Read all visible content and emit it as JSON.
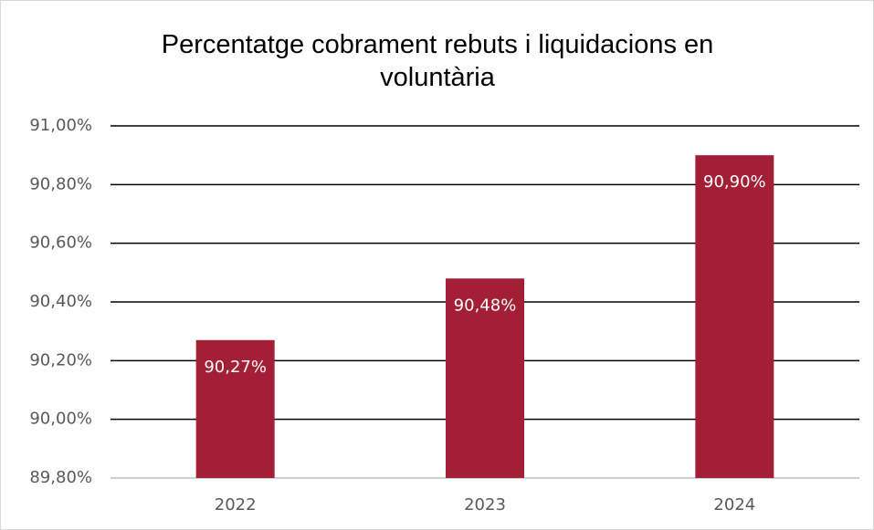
{
  "chart_data": {
    "type": "bar",
    "title": "Percentatge cobrament rebuts i liquidacions en voluntària",
    "categories": [
      "2022",
      "2023",
      "2024"
    ],
    "values": [
      90.27,
      90.48,
      90.9
    ],
    "value_labels": [
      "90,27%",
      "90,48%",
      "90,90%"
    ],
    "color": "#a21f35",
    "ylim": [
      89.8,
      91.0
    ],
    "yticks": [
      {
        "value": 89.8,
        "label": "89,80%"
      },
      {
        "value": 90.0,
        "label": "90,00%"
      },
      {
        "value": 90.2,
        "label": "90,20%"
      },
      {
        "value": 90.4,
        "label": "90,40%"
      },
      {
        "value": 90.6,
        "label": "90,60%"
      },
      {
        "value": 90.8,
        "label": "90,80%"
      },
      {
        "value": 91.0,
        "label": "91,00%"
      }
    ],
    "grid": true
  }
}
